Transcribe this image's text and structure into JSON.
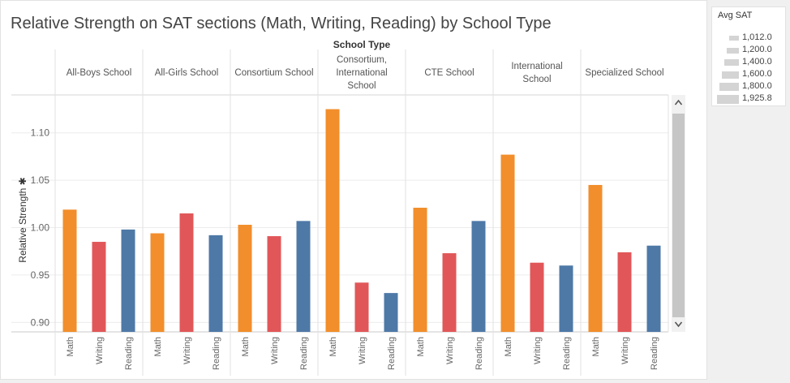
{
  "title": "Relative Strength on SAT sections (Math, Writing, Reading) by School Type",
  "legend": {
    "title": "Avg SAT",
    "items": [
      "1,012.0",
      "1,200.0",
      "1,400.0",
      "1,600.0",
      "1,800.0",
      "1,925.8"
    ]
  },
  "icons": {
    "scroll_up": "chevron-up-icon",
    "scroll_down": "chevron-down-icon"
  },
  "chart_data": {
    "type": "bar",
    "title": "Relative Strength on SAT sections (Math, Writing, Reading) by School Type",
    "column_header": "School Type",
    "ylabel": "Relative Strength",
    "ylabel_marker": "✱",
    "ylim": [
      0.89,
      1.14
    ],
    "yticks": [
      "0.90",
      "0.95",
      "1.00",
      "1.05",
      "1.10"
    ],
    "sections": [
      "Math",
      "Writing",
      "Reading"
    ],
    "colors": {
      "Math": "#f28e2b",
      "Writing": "#e15759",
      "Reading": "#4e79a7"
    },
    "groups": [
      {
        "name": "All-Boys School",
        "values": [
          1.019,
          0.985,
          0.998
        ]
      },
      {
        "name": "All-Girls School",
        "values": [
          0.994,
          1.015,
          0.992
        ]
      },
      {
        "name": "Consortium School",
        "values": [
          1.003,
          0.991,
          1.007
        ]
      },
      {
        "name": "Consortium, International School",
        "values": [
          1.125,
          0.942,
          0.931
        ]
      },
      {
        "name": "CTE School",
        "values": [
          1.021,
          0.973,
          1.007
        ]
      },
      {
        "name": "International School",
        "values": [
          1.077,
          0.963,
          0.96
        ]
      },
      {
        "name": "Specialized School",
        "values": [
          1.045,
          0.974,
          0.981
        ]
      }
    ]
  }
}
